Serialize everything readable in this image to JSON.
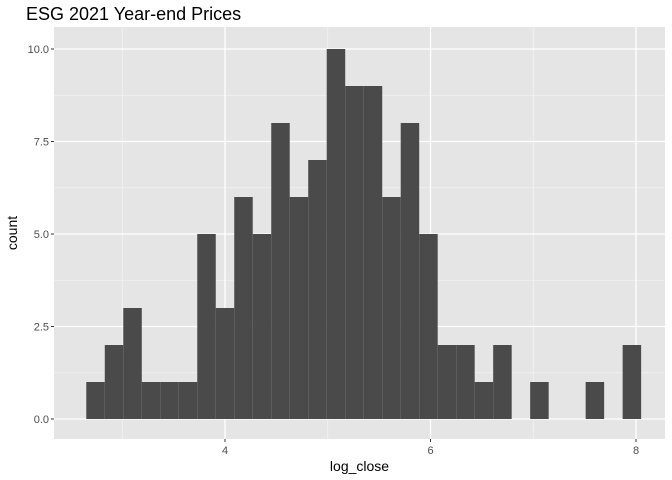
{
  "chart_data": {
    "type": "bar",
    "title": "ESG 2021 Year-end Prices",
    "xlabel": "log_close",
    "ylabel": "count",
    "xlim": [
      2.5,
      8.3
    ],
    "ylim": [
      0,
      10.0
    ],
    "x_ticks": [
      4,
      6,
      8
    ],
    "x_tick_labels": [
      "4",
      "6",
      "8"
    ],
    "y_ticks": [
      0,
      2.5,
      5,
      7.5,
      10
    ],
    "y_tick_labels": [
      "0.0",
      "2.5",
      "5.0",
      "7.5",
      "10.0"
    ],
    "grid": true,
    "bar_color": "#4a4a4a",
    "panel_color": "#e5e5e5",
    "bin_width": 0.18,
    "bins": [
      {
        "x0": 2.65,
        "x1": 2.83,
        "count": 1
      },
      {
        "x0": 2.83,
        "x1": 3.01,
        "count": 2
      },
      {
        "x0": 3.01,
        "x1": 3.19,
        "count": 3
      },
      {
        "x0": 3.19,
        "x1": 3.37,
        "count": 1
      },
      {
        "x0": 3.37,
        "x1": 3.55,
        "count": 1
      },
      {
        "x0": 3.55,
        "x1": 3.73,
        "count": 1
      },
      {
        "x0": 3.73,
        "x1": 3.91,
        "count": 5
      },
      {
        "x0": 3.91,
        "x1": 4.09,
        "count": 3
      },
      {
        "x0": 4.09,
        "x1": 4.27,
        "count": 6
      },
      {
        "x0": 4.27,
        "x1": 4.45,
        "count": 5
      },
      {
        "x0": 4.45,
        "x1": 4.63,
        "count": 8
      },
      {
        "x0": 4.63,
        "x1": 4.81,
        "count": 6
      },
      {
        "x0": 4.81,
        "x1": 4.99,
        "count": 7
      },
      {
        "x0": 4.99,
        "x1": 5.17,
        "count": 10
      },
      {
        "x0": 5.17,
        "x1": 5.35,
        "count": 9
      },
      {
        "x0": 5.35,
        "x1": 5.53,
        "count": 9
      },
      {
        "x0": 5.53,
        "x1": 5.71,
        "count": 6
      },
      {
        "x0": 5.71,
        "x1": 5.89,
        "count": 8
      },
      {
        "x0": 5.89,
        "x1": 6.07,
        "count": 5
      },
      {
        "x0": 6.07,
        "x1": 6.25,
        "count": 2
      },
      {
        "x0": 6.25,
        "x1": 6.43,
        "count": 2
      },
      {
        "x0": 6.43,
        "x1": 6.61,
        "count": 1
      },
      {
        "x0": 6.61,
        "x1": 6.79,
        "count": 2
      },
      {
        "x0": 6.79,
        "x1": 6.97,
        "count": 0
      },
      {
        "x0": 6.97,
        "x1": 7.15,
        "count": 1
      },
      {
        "x0": 7.15,
        "x1": 7.33,
        "count": 0
      },
      {
        "x0": 7.33,
        "x1": 7.51,
        "count": 0
      },
      {
        "x0": 7.51,
        "x1": 7.69,
        "count": 1
      },
      {
        "x0": 7.69,
        "x1": 7.87,
        "count": 0
      },
      {
        "x0": 7.87,
        "x1": 8.05,
        "count": 2
      }
    ]
  }
}
